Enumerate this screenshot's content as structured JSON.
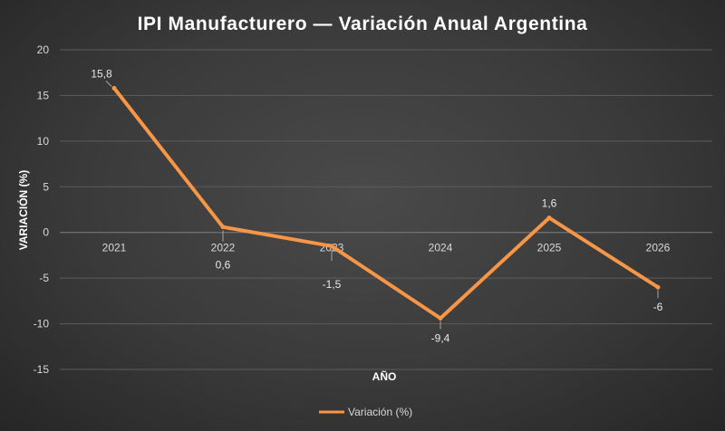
{
  "colors": {
    "series": "#f79646",
    "grid": "#5c5c5c",
    "zero_line": "#7f7f7f",
    "text": "#d9d9d9",
    "background": "#3a3a3a"
  },
  "chart_data": {
    "type": "line",
    "title": "IPI Manufacturero — Variación Anual Argentina",
    "xlabel": "AÑO",
    "ylabel": "VARIACIÓN (%)",
    "categories": [
      "2021",
      "2022",
      "2023",
      "2024",
      "2025",
      "2026"
    ],
    "series": [
      {
        "name": "Variación (%)",
        "values": [
          15.8,
          0.6,
          -1.5,
          -9.4,
          1.6,
          -6
        ],
        "labels": [
          "15,8",
          "0,6",
          "-1,5",
          "-9,4",
          "1,6",
          "-6"
        ]
      }
    ],
    "ylim": [
      -15,
      20
    ],
    "yticks": [
      20,
      15,
      10,
      5,
      0,
      -5,
      -10,
      -15
    ],
    "ytick_labels": [
      "20",
      "15",
      "10",
      "5",
      "0",
      "-5",
      "-10",
      "-15"
    ],
    "grid": true,
    "legend_position": "bottom"
  }
}
